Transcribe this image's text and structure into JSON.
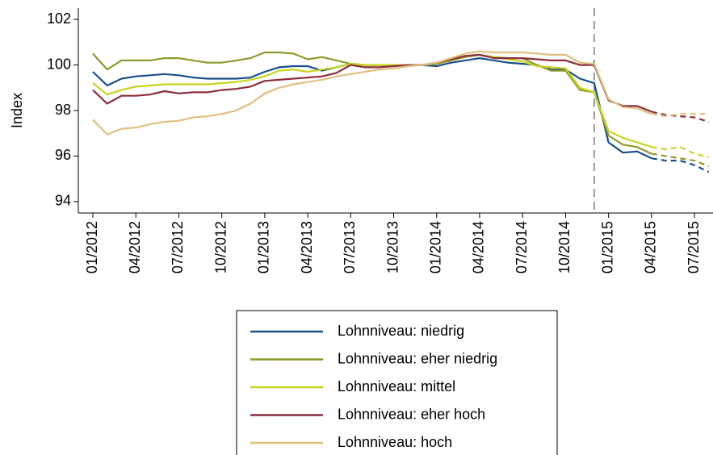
{
  "chart_data": {
    "type": "line",
    "y_label": "Index",
    "categories": [
      "01/2012",
      null,
      null,
      "04/2012",
      null,
      null,
      "07/2012",
      null,
      null,
      "10/2012",
      null,
      null,
      "01/2013",
      null,
      null,
      "04/2013",
      null,
      null,
      "07/2013",
      null,
      null,
      "10/2013",
      null,
      null,
      "01/2014",
      null,
      null,
      "04/2014",
      null,
      null,
      "07/2014",
      null,
      null,
      "10/2014",
      null,
      null,
      "01/2015",
      null,
      null,
      "04/2015",
      null,
      null,
      "07/2015",
      null
    ],
    "ylim": [
      93.5,
      102.5
    ],
    "yticks": [
      94,
      96,
      98,
      100,
      102
    ],
    "vline": 35,
    "dashed_from": 39,
    "series": [
      {
        "name": "Lohnniveau: niedrig",
        "color": "#1a4f8a",
        "values": [
          99.7,
          99.1,
          99.4,
          99.5,
          99.55,
          99.6,
          99.55,
          99.45,
          99.4,
          99.4,
          99.4,
          99.45,
          99.7,
          99.9,
          99.95,
          99.95,
          99.75,
          99.9,
          100.05,
          100,
          100,
          100,
          100,
          100,
          99.95,
          100.1,
          100.2,
          100.3,
          100.2,
          100.1,
          100.05,
          100,
          99.8,
          99.8,
          99.4,
          99.2,
          96.6,
          96.15,
          96.2,
          95.9,
          95.8,
          95.8,
          95.6,
          95.3
        ]
      },
      {
        "name": "Lohnniveau: eher niedrig",
        "color": "#8f9a2a",
        "values": [
          100.5,
          99.8,
          100.2,
          100.2,
          100.2,
          100.3,
          100.3,
          100.2,
          100.1,
          100.1,
          100.2,
          100.3,
          100.55,
          100.55,
          100.5,
          100.25,
          100.35,
          100.2,
          100.05,
          100,
          100,
          100,
          100,
          100,
          100.05,
          100.2,
          100.35,
          100.45,
          100.35,
          100.3,
          100.3,
          100,
          99.75,
          99.75,
          98.9,
          98.8,
          96.9,
          96.5,
          96.4,
          96.1,
          96,
          95.9,
          95.8,
          95.55
        ]
      },
      {
        "name": "Lohnniveau: mittel",
        "color": "#c8d41e",
        "values": [
          99.2,
          98.7,
          98.9,
          99.05,
          99.1,
          99.15,
          99.15,
          99.15,
          99.15,
          99.2,
          99.25,
          99.35,
          99.5,
          99.75,
          99.8,
          99.7,
          99.8,
          99.9,
          100.05,
          100,
          100,
          100,
          100,
          100,
          100.1,
          100.25,
          100.4,
          100.45,
          100.35,
          100.25,
          100.15,
          99.95,
          99.9,
          99.85,
          99,
          98.8,
          97.1,
          96.8,
          96.6,
          96.4,
          96.3,
          96.4,
          96.1,
          95.95
        ]
      },
      {
        "name": "Lohnniveau: eher hoch",
        "color": "#8b2d3c",
        "values": [
          98.9,
          98.3,
          98.65,
          98.65,
          98.7,
          98.85,
          98.75,
          98.8,
          98.8,
          98.9,
          98.95,
          99.05,
          99.3,
          99.35,
          99.4,
          99.45,
          99.5,
          99.65,
          100,
          99.9,
          99.9,
          99.95,
          100,
          100,
          100.1,
          100.25,
          100.4,
          100.45,
          100.3,
          100.3,
          100.3,
          100.25,
          100.2,
          100.2,
          100,
          100,
          98.45,
          98.2,
          98.2,
          97.95,
          97.8,
          97.75,
          97.7,
          97.5
        ]
      },
      {
        "name": "Lohnniveau: hoch",
        "color": "#e0c080",
        "values": [
          97.6,
          96.95,
          97.2,
          97.25,
          97.4,
          97.5,
          97.55,
          97.7,
          97.75,
          97.85,
          98,
          98.3,
          98.75,
          99,
          99.15,
          99.25,
          99.35,
          99.5,
          99.6,
          99.7,
          99.8,
          99.85,
          99.95,
          100,
          100.1,
          100.3,
          100.5,
          100.6,
          100.55,
          100.55,
          100.55,
          100.5,
          100.45,
          100.45,
          100.1,
          100.05,
          98.5,
          98.15,
          98.1,
          97.85,
          97.75,
          97.85,
          97.85,
          97.85
        ]
      }
    ]
  }
}
